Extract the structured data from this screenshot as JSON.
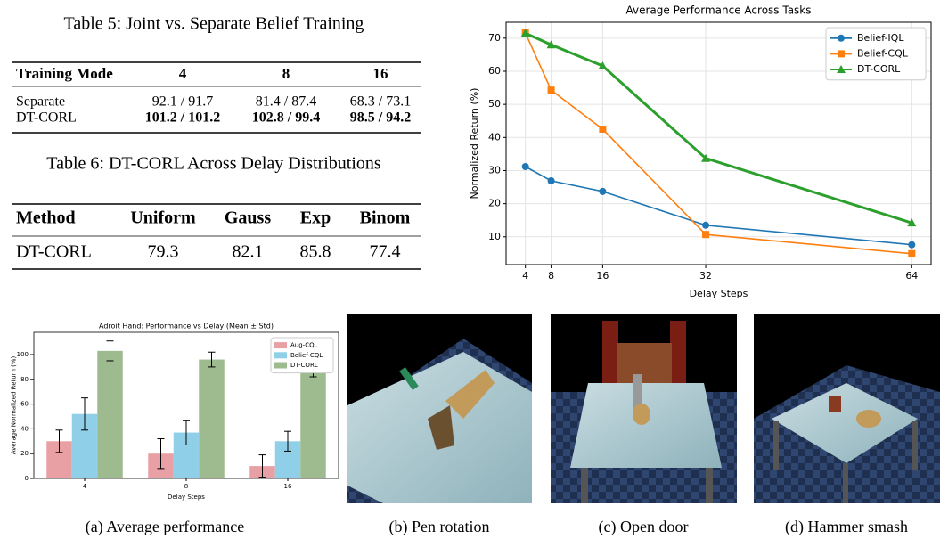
{
  "tables": [
    {
      "title": "Table 5: Joint vs. Separate Belief Training",
      "header": [
        "Training Mode",
        "4",
        "8",
        "16"
      ],
      "rows": [
        [
          "Separate",
          "92.1 / 91.7",
          "81.4 / 87.4",
          "68.3 / 73.1"
        ],
        [
          "DT-CORL",
          "101.2 / 101.2",
          "102.8 / 99.4",
          "98.5 / 94.2"
        ]
      ]
    },
    {
      "title": "Table 6: DT-CORL Across Delay Distributions",
      "header": [
        "Method",
        "Uniform",
        "Gauss",
        "Exp",
        "Binom"
      ],
      "rows": [
        [
          "DT-CORL",
          "79.3",
          "82.1",
          "85.8",
          "77.4"
        ]
      ]
    }
  ],
  "chart_data": [
    {
      "type": "line",
      "title": "Average Performance Across Tasks",
      "x_label": "Delay Steps",
      "y_label": "Normalized Return (%)",
      "x": [
        4,
        8,
        16,
        32,
        64
      ],
      "series": [
        {
          "name": "Belief-IQL",
          "color": "#1f77b4",
          "marker": "circle",
          "values": [
            31.2,
            26.9,
            23.7,
            13.5,
            7.6
          ]
        },
        {
          "name": "Belief-CQL",
          "color": "#ff7f0e",
          "marker": "square",
          "values": [
            71.6,
            54.3,
            42.5,
            10.7,
            4.9
          ]
        },
        {
          "name": "DT-CORL",
          "color": "#2ca02c",
          "marker": "triangle",
          "values": [
            71.5,
            68.0,
            61.6,
            33.7,
            14.2
          ]
        }
      ],
      "xlim": [
        1,
        67
      ],
      "xticks": [
        4,
        8,
        16,
        32,
        64
      ],
      "ylim": [
        1.6,
        74.8
      ],
      "yticks": [
        10,
        20,
        30,
        40,
        50,
        60,
        70
      ],
      "grid": true,
      "legend": "upper right"
    },
    {
      "type": "bar",
      "title": "Adroit Hand: Performance vs Delay (Mean ± Std)",
      "x_label": "Delay Steps",
      "y_label": "Average Normalized Return (%)",
      "categories": [
        "4",
        "8",
        "16"
      ],
      "series": [
        {
          "name": "Aug-CQL",
          "color": "#e8a0a4",
          "values": [
            30,
            20,
            10
          ],
          "errors": [
            9,
            12,
            9
          ]
        },
        {
          "name": "Belief-CQL",
          "color": "#8fcfe8",
          "values": [
            52,
            37,
            30
          ],
          "errors": [
            13,
            10,
            8
          ]
        },
        {
          "name": "DT-CORL",
          "color": "#9dbb8f",
          "values": [
            103,
            96,
            89
          ],
          "errors": [
            8,
            6,
            7
          ]
        }
      ],
      "ylim": [
        0,
        118
      ],
      "yticks": [
        0,
        20,
        40,
        60,
        80,
        100
      ],
      "grid": false,
      "legend": "upper right"
    }
  ],
  "captions": [
    "(a) Average performance",
    "(b) Pen rotation",
    "(c) Open door",
    "(d) Hammer smash"
  ]
}
